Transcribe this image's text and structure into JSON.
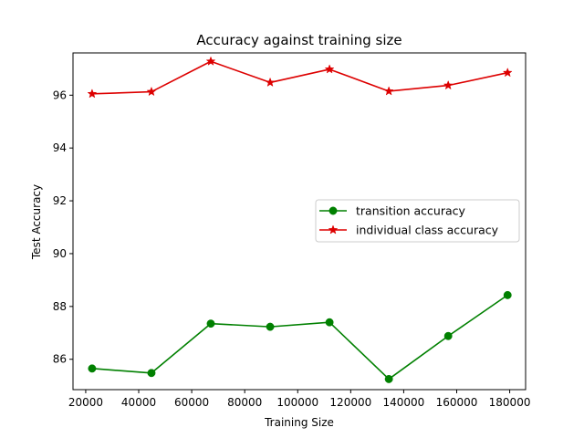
{
  "chart_data": {
    "type": "line",
    "title": "Accuracy against training size",
    "xlabel": "Training Size",
    "ylabel": "Test Accuracy",
    "xlim": [
      15200,
      186000
    ],
    "ylim": [
      84.85,
      97.6
    ],
    "xticks": [
      20000,
      40000,
      60000,
      80000,
      100000,
      120000,
      140000,
      160000,
      180000
    ],
    "yticks": [
      86,
      88,
      90,
      92,
      94,
      96
    ],
    "x": [
      22400,
      44800,
      67200,
      89600,
      112000,
      134400,
      156800,
      179200
    ],
    "grid": false,
    "legend_position": "center-right",
    "series": [
      {
        "name": "transition accuracy",
        "color": "#008000",
        "marker": "circle",
        "values": [
          85.65,
          85.48,
          87.35,
          87.23,
          87.4,
          85.25,
          86.88,
          88.43
        ]
      },
      {
        "name": "individual class accuracy",
        "color": "#dd0000",
        "marker": "star",
        "values": [
          96.05,
          96.13,
          97.28,
          96.48,
          96.98,
          96.15,
          96.37,
          96.85
        ]
      }
    ]
  }
}
